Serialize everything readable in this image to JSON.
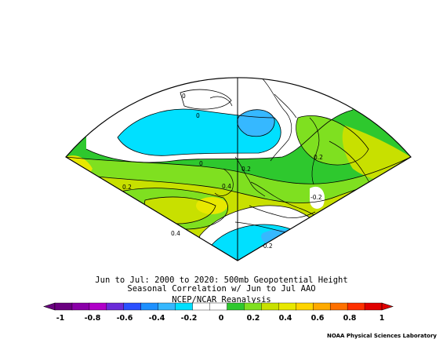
{
  "figure": {
    "title_line1": "Jun to Jul: 2000 to 2020: 500mb Geopotential Height",
    "title_line2": "Seasonal Correlation w/ Jun to Jul AAO",
    "title_line3": "NCEP/NCAR Reanalysis",
    "credit": "NOAA Physical Sciences Laboratory"
  },
  "map": {
    "projection": "conic sector",
    "contour_labels": [
      "0",
      "0",
      "0.2",
      "0.2",
      "0.2",
      "0.4",
      "0.4",
      "-0.2",
      "-0.2",
      "0"
    ]
  },
  "colorbar": {
    "ticks": [
      "-1",
      "-0.8",
      "-0.6",
      "-0.4",
      "-0.2",
      "0",
      "0.2",
      "0.4",
      "0.6",
      "0.8",
      "1"
    ],
    "colors": [
      "#6a0080",
      "#8a00a8",
      "#b000c8",
      "#6a2bd8",
      "#2b50ff",
      "#1e90ff",
      "#36b8ff",
      "#00e0ff",
      "#ffffff",
      "#ffffff",
      "#2ec82e",
      "#7fe020",
      "#c8e000",
      "#e8e800",
      "#ffd400",
      "#ffaa00",
      "#ff7000",
      "#ff3000",
      "#e00000"
    ]
  }
}
